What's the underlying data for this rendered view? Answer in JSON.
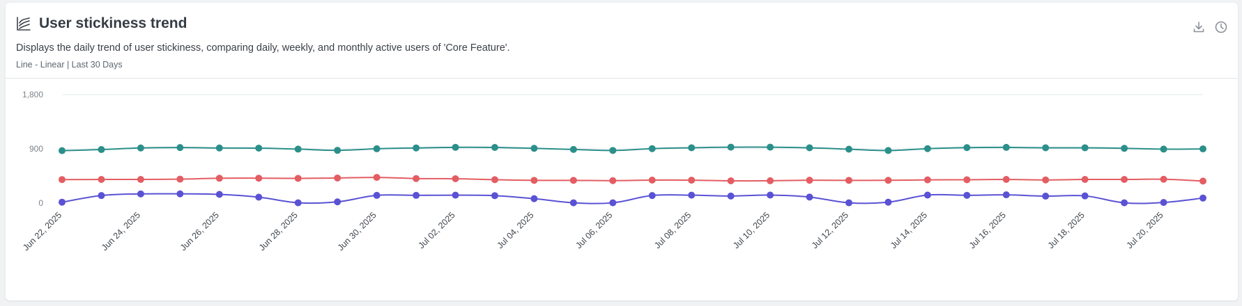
{
  "widget": {
    "title": "User stickiness trend",
    "description": "Displays the daily trend of user stickiness, comparing daily, weekly, and monthly active users of 'Core Feature'.",
    "meta": "Line - Linear | Last 30 Days",
    "icons": {
      "title": "line-chart-icon",
      "download": "download-icon",
      "history": "clock-icon"
    }
  },
  "chart_data": {
    "type": "line",
    "scale": "linear",
    "ylim": [
      0,
      1800
    ],
    "yticks": [
      {
        "value": 0,
        "label": "0"
      },
      {
        "value": 900,
        "label": "900"
      },
      {
        "value": 1800,
        "label": "1,800"
      }
    ],
    "grid": true,
    "x": [
      "2025-06-22",
      "2025-06-23",
      "2025-06-24",
      "2025-06-25",
      "2025-06-26",
      "2025-06-27",
      "2025-06-28",
      "2025-06-29",
      "2025-06-30",
      "2025-07-01",
      "2025-07-02",
      "2025-07-03",
      "2025-07-04",
      "2025-07-05",
      "2025-07-06",
      "2025-07-07",
      "2025-07-08",
      "2025-07-09",
      "2025-07-10",
      "2025-07-11",
      "2025-07-12",
      "2025-07-13",
      "2025-07-14",
      "2025-07-15",
      "2025-07-16",
      "2025-07-17",
      "2025-07-18",
      "2025-07-19",
      "2025-07-20",
      "2025-07-21"
    ],
    "xtick_labels": [
      {
        "index": 0,
        "label": "Jun 22, 2025"
      },
      {
        "index": 2,
        "label": "Jun 24, 2025"
      },
      {
        "index": 4,
        "label": "Jun 26, 2025"
      },
      {
        "index": 6,
        "label": "Jun 28, 2025"
      },
      {
        "index": 8,
        "label": "Jun 30, 2025"
      },
      {
        "index": 10,
        "label": "Jul 02, 2025"
      },
      {
        "index": 12,
        "label": "Jul 04, 2025"
      },
      {
        "index": 14,
        "label": "Jul 06, 2025"
      },
      {
        "index": 16,
        "label": "Jul 08, 2025"
      },
      {
        "index": 18,
        "label": "Jul 10, 2025"
      },
      {
        "index": 20,
        "label": "Jul 12, 2025"
      },
      {
        "index": 22,
        "label": "Jul 14, 2025"
      },
      {
        "index": 24,
        "label": "Jul 16, 2025"
      },
      {
        "index": 26,
        "label": "Jul 18, 2025"
      },
      {
        "index": 28,
        "label": "Jul 20, 2025"
      }
    ],
    "series": [
      {
        "color": "#2b8f8a",
        "values": [
          870,
          888,
          914,
          921,
          914,
          912,
          895,
          875,
          901,
          915,
          925,
          923,
          908,
          890,
          873,
          903,
          918,
          928,
          928,
          917,
          894,
          872,
          903,
          920,
          924,
          917,
          918,
          908,
          895,
          899
        ]
      },
      {
        "color": "#e35d62",
        "values": [
          390,
          392,
          392,
          397,
          412,
          413,
          410,
          416,
          426,
          407,
          404,
          388,
          377,
          377,
          372,
          381,
          380,
          369,
          370,
          379,
          377,
          378,
          385,
          387,
          392,
          384,
          392,
          392,
          395,
          365
        ]
      },
      {
        "color": "#5a52d4",
        "values": [
          15,
          125,
          152,
          153,
          144,
          98,
          5,
          20,
          128,
          128,
          131,
          123,
          73,
          5,
          5,
          125,
          131,
          117,
          133,
          100,
          5,
          15,
          133,
          129,
          137,
          115,
          119,
          5,
          10,
          83
        ]
      }
    ]
  }
}
